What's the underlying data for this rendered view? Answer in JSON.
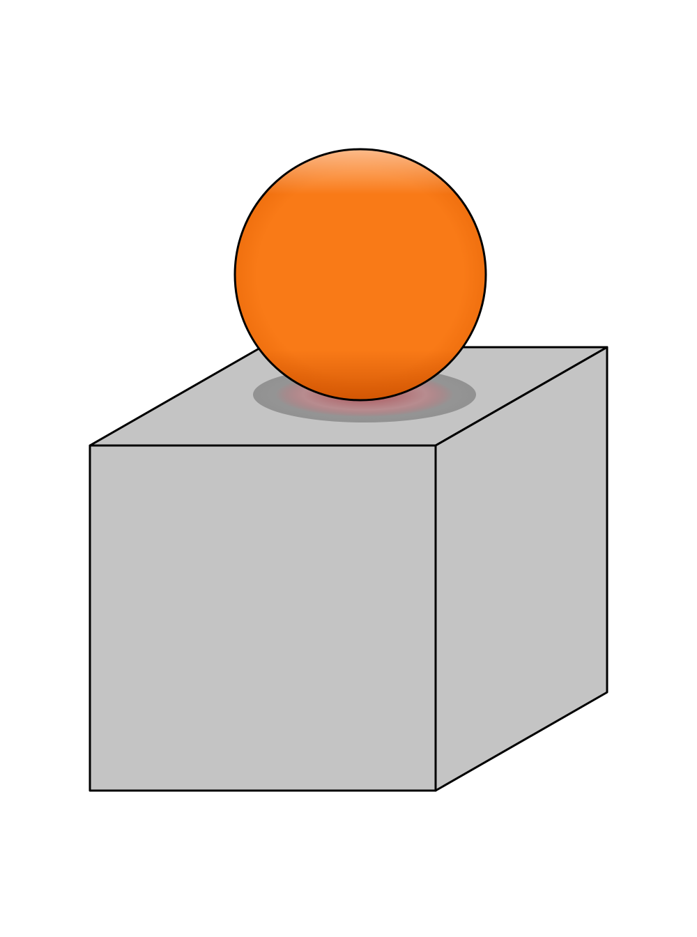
{
  "scene": {
    "objects": [
      "sphere",
      "cube"
    ],
    "sphere": {
      "color": "#F97A17",
      "highlight_color": "#FFC8A0",
      "shade_color": "#C94E00"
    },
    "cube": {
      "face_color": "#C4C4C4",
      "edge_color": "#000000"
    },
    "contact_shadow": {
      "outer_color": "#8C8C8C",
      "inner_color": "#A8484F"
    },
    "background": "#FFFFFF"
  }
}
